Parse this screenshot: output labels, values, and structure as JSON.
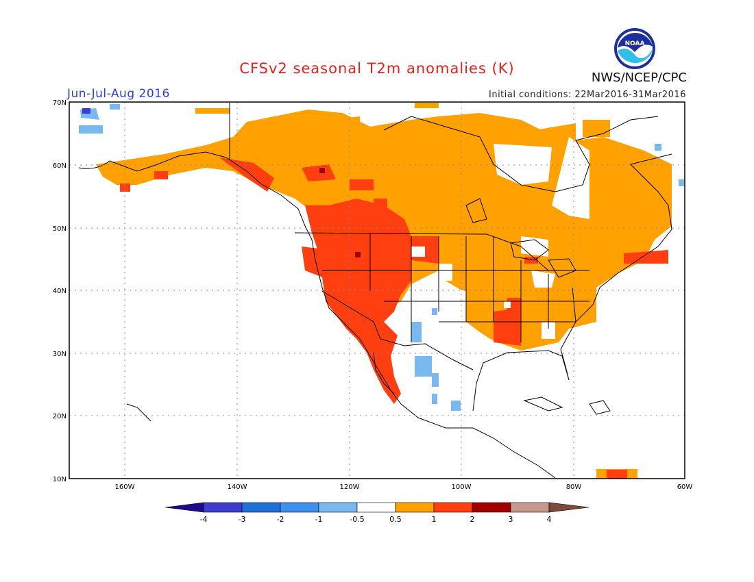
{
  "title": "CFSv2 seasonal T2m anomalies (K)",
  "period": "Jun-Jul-Aug 2016",
  "initial_conditions": "Initial conditions: 22Mar2016-31Mar2016",
  "agency": "NWS/NCEP/CPC",
  "logo_text": "NOAA",
  "map": {
    "lat_labels": [
      "70N",
      "60N",
      "50N",
      "40N",
      "30N",
      "20N",
      "10N"
    ],
    "lon_labels": [
      "160W",
      "140W",
      "120W",
      "100W",
      "80W",
      "60W"
    ]
  },
  "colorbar": {
    "levels": [
      "-4",
      "-3",
      "-2",
      "-1",
      "-0.5",
      "0.5",
      "1",
      "2",
      "3",
      "4"
    ],
    "colors": [
      "#1f0a8c",
      "#3c3ccf",
      "#1e6fd6",
      "#3d91ec",
      "#7ab8f0",
      "#ffffff",
      "#ffa100",
      "#ff3f10",
      "#a00000",
      "#c59a8c",
      "#7b4a3c"
    ]
  },
  "colors": {
    "warm_light": "#ffa100",
    "warm_strong": "#ff3f10",
    "warm_extreme": "#a00000",
    "cool_light": "#7ab8f0",
    "cool_mid": "#3d91ec",
    "cool_deep": "#3c3ccf"
  }
}
